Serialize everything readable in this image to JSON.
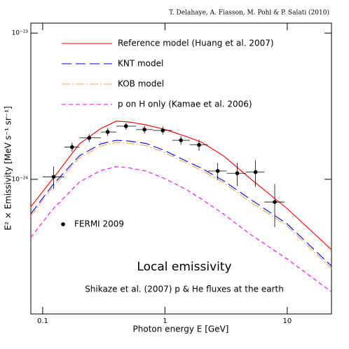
{
  "chart_data": {
    "type": "line",
    "credit": "T. Delahaye, A. Fiasson, M. Pohl & P. Salati (2010)",
    "title": "Local emissivity",
    "subtitle": "Shikaze et al. (2007) p & He fluxes at the earth",
    "xlabel": "Photon energy E  [GeV]",
    "ylabel": "E² × Emissivity [MeV s⁻¹ sr⁻¹]",
    "log_x": true,
    "log_y": true,
    "xlim": [
      0.08,
      23
    ],
    "ylim": [
      1.2e-25,
      1.17e-23
    ],
    "xticks": [
      0.1,
      1,
      10
    ],
    "yticks": [
      {
        "value": 1e-24,
        "label": "10⁻²⁴"
      },
      {
        "value": 1e-23,
        "label": "10⁻²³"
      }
    ],
    "x": [
      0.08,
      0.12,
      0.2,
      0.3,
      0.4,
      0.5,
      0.7,
      1,
      1.5,
      2,
      3,
      5,
      10,
      23
    ],
    "series": [
      {
        "name": "Reference model (Huang et al. 2007)",
        "color": "#ff0000",
        "dash": "none",
        "values": [
          6.5e-25,
          1e-24,
          1.75e-24,
          2.23e-24,
          2.5e-24,
          2.47e-24,
          2.36e-24,
          2.19e-24,
          1.96e-24,
          1.79e-24,
          1.45e-24,
          1.01e-24,
          6.3e-25,
          3.3e-25
        ]
      },
      {
        "name": "KNT model",
        "color": "#0000ff",
        "dash": "14,6",
        "values": [
          5.8e-25,
          9.1e-25,
          1.45e-24,
          1.75e-24,
          1.85e-24,
          1.83e-24,
          1.76e-24,
          1.57e-24,
          1.33e-24,
          1.19e-24,
          9.8e-25,
          7.3e-25,
          4.95e-25,
          2.55e-25
        ]
      },
      {
        "name": "KOB model",
        "color": "#f4a460",
        "dash": "12,3,2,3",
        "values": [
          5.6e-25,
          8.8e-25,
          1.4e-24,
          1.69e-24,
          1.79e-24,
          1.77e-24,
          1.7e-24,
          1.52e-24,
          1.29e-24,
          1.15e-24,
          9.5e-25,
          7e-25,
          4.8e-25,
          2.45e-25
        ]
      },
      {
        "name": "p on H only (Kamae et al. 2006)",
        "color": "#ff00ff",
        "dash": "6,4",
        "values": [
          4e-25,
          6.2e-25,
          9.6e-25,
          1.15e-24,
          1.22e-24,
          1.2e-24,
          1.14e-24,
          1.01e-24,
          8.5e-25,
          7.3e-25,
          5.8e-25,
          4.2e-25,
          2.85e-25,
          1.7e-25
        ]
      }
    ],
    "points": {
      "name": "FERMI 2009",
      "color": "#000000",
      "x": [
        0.123,
        0.174,
        0.24,
        0.34,
        0.48,
        0.68,
        0.96,
        1.35,
        1.9,
        2.7,
        3.9,
        5.5,
        7.9
      ],
      "x_lo": [
        0.1,
        0.15,
        0.2,
        0.3,
        0.4,
        0.58,
        0.8,
        1.15,
        1.6,
        2.25,
        3.2,
        4.6,
        6.5
      ],
      "x_hi": [
        0.15,
        0.2,
        0.3,
        0.4,
        0.58,
        0.8,
        1.15,
        1.6,
        2.25,
        3.2,
        4.6,
        6.5,
        9.5
      ],
      "values": [
        1.04e-24,
        1.66e-24,
        1.92e-24,
        2.11e-24,
        2.31e-24,
        2.19e-24,
        2.16e-24,
        1.85e-24,
        1.72e-24,
        1.14e-24,
        1.1e-24,
        1.12e-24,
        7e-25
      ],
      "y_err": [
        1.8e-25,
        1.2e-25,
        1.2e-25,
        1.3e-25,
        1.3e-25,
        1.3e-25,
        1.4e-25,
        1.3e-25,
        1.5e-25,
        1.5e-25,
        2e-25,
        2.3e-25,
        2.3e-25
      ]
    }
  }
}
